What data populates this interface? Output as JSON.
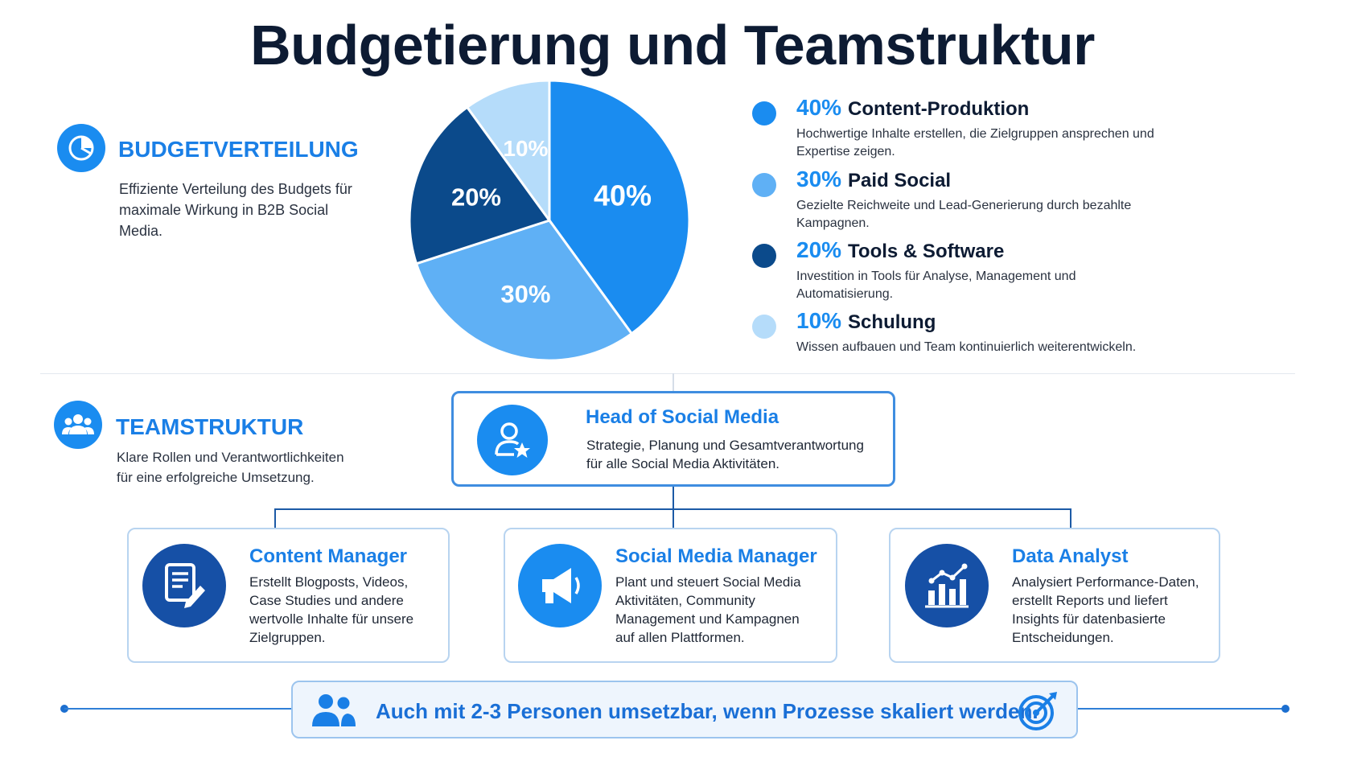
{
  "title": "Budgetierung und Teamstruktur",
  "colors": {
    "accent": "#1a8cf0",
    "dark_blue": "#0b4a8b",
    "mid_blue": "#5fb0f5",
    "light_blue": "#b5dcfa",
    "text_dark": "#0d1b33"
  },
  "budget_section": {
    "heading": "BUDGETVERTEILUNG",
    "text": "Effiziente Verteilung des Budgets für maximale Wirkung in B2B Social Media.",
    "icon": "pie-chart-icon"
  },
  "chart_data": {
    "type": "pie",
    "slices": [
      {
        "label": "40%",
        "value": 40,
        "name": "Content-Produktion",
        "color": "#1a8cf0"
      },
      {
        "label": "30%",
        "value": 30,
        "name": "Paid Social",
        "color": "#5fb0f5"
      },
      {
        "label": "20%",
        "value": 20,
        "name": "Tools & Software",
        "color": "#0b4a8b"
      },
      {
        "label": "10%",
        "value": 10,
        "name": "Schulung",
        "color": "#b5dcfa"
      }
    ]
  },
  "legend": [
    {
      "pct": "40%",
      "name": "Content-Produktion",
      "desc": "Hochwertige Inhalte erstellen, die Zielgruppen ansprechen und Expertise zeigen.",
      "color": "#1a8cf0"
    },
    {
      "pct": "30%",
      "name": "Paid Social",
      "desc": "Gezielte Reichweite und Lead-Generierung durch bezahlte Kampagnen.",
      "color": "#5fb0f5"
    },
    {
      "pct": "20%",
      "name": "Tools & Software",
      "desc": "Investition in Tools für Analyse, Management und Automatisierung.",
      "color": "#0b4a8b"
    },
    {
      "pct": "10%",
      "name": "Schulung",
      "desc": "Wissen aufbauen und Team kontinuierlich weiterentwickeln.",
      "color": "#b5dcfa"
    }
  ],
  "team_section": {
    "heading": "TEAMSTRUKTUR",
    "text": "Klare Rollen und Verantwortlichkeiten für eine erfolgreiche Umsetzung.",
    "icon": "team-icon"
  },
  "org": {
    "head": {
      "title": "Head of Social Media",
      "desc": "Strategie, Planung und Gesamtverantwortung für alle Social Media Aktivitäten.",
      "icon": "user-star-icon"
    },
    "roles": [
      {
        "title": "Content Manager",
        "desc": "Erstellt Blogposts, Videos, Case Studies und andere wertvolle Inhalte für unsere Zielgruppen.",
        "icon": "document-pen-icon"
      },
      {
        "title": "Social Media Manager",
        "desc": "Plant und steuert Social Media Aktivitäten, Community Management und Kampagnen auf allen Plattformen.",
        "icon": "megaphone-icon"
      },
      {
        "title": "Data Analyst",
        "desc": "Analysiert Performance-Daten, erstellt Reports und liefert Insights für datenbasierte Entscheidungen.",
        "icon": "bar-chart-icon"
      }
    ]
  },
  "banner": {
    "text": "Auch mit 2-3 Personen umsetzbar, wenn Prozesse skaliert werden.",
    "left_icon": "people-icon",
    "right_icon": "target-icon"
  }
}
